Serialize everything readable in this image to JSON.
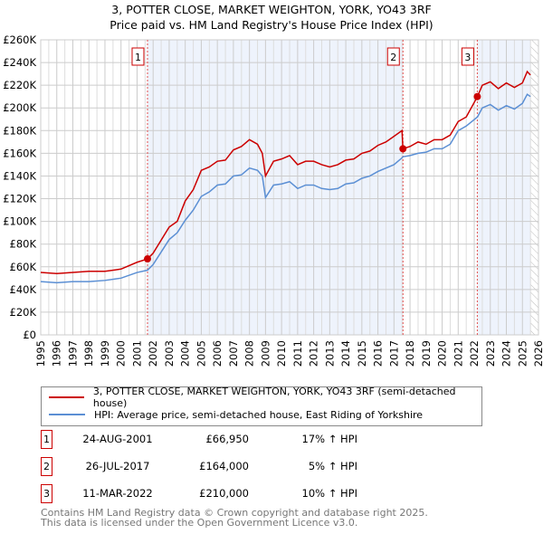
{
  "title": "3, POTTER CLOSE, MARKET WEIGHTON, YORK, YO43 3RF",
  "subtitle": "Price paid vs. HM Land Registry's House Price Index (HPI)",
  "chart_data": {
    "type": "line",
    "xlim": [
      1995,
      2026
    ],
    "ylim": [
      0,
      260000
    ],
    "yticks": [
      0,
      20000,
      40000,
      60000,
      80000,
      100000,
      120000,
      140000,
      160000,
      180000,
      200000,
      220000,
      240000,
      260000
    ],
    "ytick_labels": [
      "£0",
      "£20K",
      "£40K",
      "£60K",
      "£80K",
      "£100K",
      "£120K",
      "£140K",
      "£160K",
      "£180K",
      "£200K",
      "£220K",
      "£240K",
      "£260K"
    ],
    "xticks": [
      1995,
      1996,
      1997,
      1998,
      1999,
      2000,
      2001,
      2002,
      2003,
      2004,
      2005,
      2006,
      2007,
      2008,
      2009,
      2010,
      2011,
      2012,
      2013,
      2014,
      2015,
      2016,
      2017,
      2018,
      2019,
      2020,
      2021,
      2022,
      2023,
      2024,
      2025,
      2026
    ],
    "series": [
      {
        "name": "3, POTTER CLOSE, MARKET WEIGHTON, YORK, YO43 3RF (semi-detached house)",
        "color": "#cc0000",
        "x": [
          1995,
          1996,
          1997,
          1998,
          1999,
          2000,
          2001,
          2001.65,
          2002,
          2003,
          2003.5,
          2004,
          2004.5,
          2005,
          2005.5,
          2006,
          2006.5,
          2007,
          2007.5,
          2008,
          2008.5,
          2008.8,
          2009,
          2009.5,
          2010,
          2010.5,
          2011,
          2011.5,
          2012,
          2012.5,
          2013,
          2013.5,
          2014,
          2014.5,
          2015,
          2015.5,
          2016,
          2016.5,
          2017,
          2017.5,
          2017.56,
          2018,
          2018.5,
          2019,
          2019.5,
          2020,
          2020.5,
          2021,
          2021.5,
          2022.2,
          2022.5,
          2023,
          2023.5,
          2024,
          2024.5,
          2025,
          2025.3,
          2025.5
        ],
        "y": [
          55000,
          54000,
          55000,
          56000,
          56000,
          58000,
          64000,
          66950,
          72000,
          95000,
          100000,
          118000,
          128000,
          145000,
          148000,
          153000,
          154000,
          163000,
          166000,
          172000,
          168000,
          160000,
          140000,
          153000,
          155000,
          158000,
          150000,
          153000,
          153000,
          150000,
          148000,
          150000,
          154000,
          155000,
          160000,
          162000,
          167000,
          170000,
          175000,
          180000,
          164000,
          166000,
          170000,
          168000,
          172000,
          172000,
          176000,
          188000,
          192000,
          210000,
          220000,
          223000,
          217000,
          222000,
          218000,
          222000,
          232000,
          229000
        ]
      },
      {
        "name": "HPI: Average price, semi-detached house, East Riding of Yorkshire",
        "color": "#5b8fd4",
        "x": [
          1995,
          1996,
          1997,
          1998,
          1999,
          2000,
          2001,
          2001.65,
          2002,
          2003,
          2003.5,
          2004,
          2004.5,
          2005,
          2005.5,
          2006,
          2006.5,
          2007,
          2007.5,
          2008,
          2008.5,
          2008.8,
          2009,
          2009.5,
          2010,
          2010.5,
          2011,
          2011.5,
          2012,
          2012.5,
          2013,
          2013.5,
          2014,
          2014.5,
          2015,
          2015.5,
          2016,
          2016.5,
          2017,
          2017.5,
          2017.56,
          2018,
          2018.5,
          2019,
          2019.5,
          2020,
          2020.5,
          2021,
          2021.5,
          2022.2,
          2022.5,
          2023,
          2023.5,
          2024,
          2024.5,
          2025,
          2025.3,
          2025.5
        ],
        "y": [
          47000,
          46000,
          47000,
          47000,
          48000,
          50000,
          55000,
          57000,
          62000,
          84000,
          90000,
          101000,
          110000,
          122000,
          126000,
          132000,
          133000,
          140000,
          141000,
          147000,
          145000,
          140000,
          121000,
          132000,
          133000,
          135000,
          129000,
          132000,
          132000,
          129000,
          128000,
          129000,
          133000,
          134000,
          138000,
          140000,
          144000,
          147000,
          150000,
          156000,
          157000,
          158000,
          160000,
          161000,
          164000,
          164000,
          168000,
          180000,
          184000,
          192000,
          200000,
          203000,
          198000,
          202000,
          199000,
          204000,
          212000,
          210000
        ]
      }
    ],
    "sales": [
      {
        "label": "1",
        "x": 2001.65,
        "y": 66950
      },
      {
        "label": "2",
        "x": 2017.56,
        "y": 164000
      },
      {
        "label": "3",
        "x": 2022.19,
        "y": 210000
      }
    ],
    "shaded": [
      [
        2001.65,
        2017.56
      ],
      [
        2022.19,
        2025.5
      ]
    ],
    "hatched_from": 2025.5
  },
  "legend": {
    "red": "3, POTTER CLOSE, MARKET WEIGHTON, YORK, YO43 3RF (semi-detached house)",
    "blue": "HPI: Average price, semi-detached house, East Riding of Yorkshire"
  },
  "transactions": [
    {
      "num": "1",
      "date": "24-AUG-2001",
      "price": "£66,950",
      "hpi": "17% ↑ HPI"
    },
    {
      "num": "2",
      "date": "26-JUL-2017",
      "price": "£164,000",
      "hpi": "5% ↑ HPI"
    },
    {
      "num": "3",
      "date": "11-MAR-2022",
      "price": "£210,000",
      "hpi": "10% ↑ HPI"
    }
  ],
  "footer": {
    "line1": "Contains HM Land Registry data © Crown copyright and database right 2025.",
    "line2": "This data is licensed under the Open Government Licence v3.0."
  }
}
